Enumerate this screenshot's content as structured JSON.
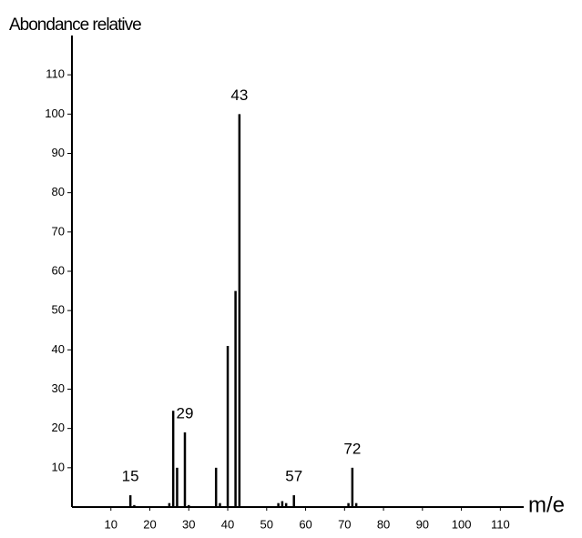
{
  "chart_data": {
    "type": "stem",
    "y_label": "Abondance relative",
    "x_label": "m/e",
    "x": [
      15,
      16,
      25,
      26,
      27,
      29,
      30,
      37,
      38,
      40,
      42,
      43,
      53,
      54,
      55,
      57,
      71,
      72,
      73
    ],
    "values": [
      3,
      0.5,
      1,
      24.5,
      10,
      19,
      0.5,
      10,
      1,
      41,
      55,
      100,
      1,
      1.5,
      1,
      3,
      1,
      10,
      1
    ],
    "peak_labels": [
      "15",
      null,
      null,
      null,
      null,
      "29",
      null,
      null,
      null,
      null,
      null,
      "43",
      null,
      null,
      null,
      "57",
      null,
      "72",
      null
    ],
    "color": "#000000",
    "xlim": [
      0,
      116
    ],
    "xticks": [
      10,
      20,
      30,
      40,
      50,
      60,
      70,
      80,
      90,
      100,
      110
    ],
    "ylim": [
      0,
      120
    ],
    "yticks": [
      10,
      20,
      30,
      40,
      50,
      60,
      70,
      80,
      90,
      100,
      110
    ]
  }
}
